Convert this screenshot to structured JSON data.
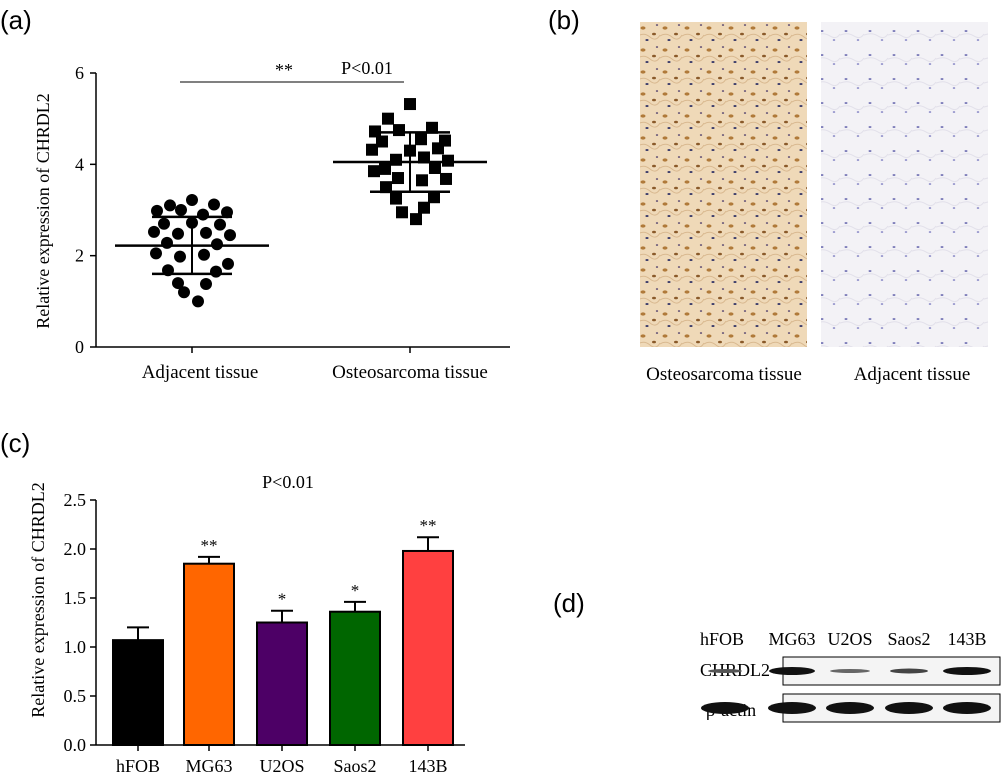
{
  "panels": {
    "a": {
      "label": "(a)"
    },
    "b": {
      "label": "(b)",
      "captions": [
        "Osteosarcoma tissue",
        "Adjacent tissue"
      ]
    },
    "c": {
      "label": "(c)"
    },
    "d": {
      "label": "(d)",
      "lanes": [
        "hFOB",
        "MG63",
        "U2OS",
        "Saos2",
        "143B"
      ],
      "rows": [
        "CHRDL2",
        "β-actin"
      ]
    }
  },
  "chart_data": [
    {
      "type": "scatter",
      "panel": "a",
      "ylabel": "Relative expression of CHRDL2",
      "ylim": [
        0,
        6
      ],
      "yticks": [
        "0",
        "2",
        "4",
        "6"
      ],
      "categories": [
        "Adjacent tissue",
        "Osteosarcoma tissue"
      ],
      "significance": {
        "stars": "**",
        "text": "P<0.01"
      },
      "series": [
        {
          "marker": "circle",
          "mean": 2.22,
          "sd_low": 1.6,
          "sd_high": 2.85,
          "values": [
            3.22,
            3.1,
            3.12,
            2.98,
            3.0,
            2.9,
            2.95,
            2.7,
            2.72,
            2.68,
            2.52,
            2.48,
            2.5,
            2.45,
            2.28,
            2.25,
            2.05,
            1.98,
            2.02,
            1.82,
            1.68,
            1.65,
            1.4,
            1.38,
            1.2,
            1.0
          ]
        },
        {
          "marker": "square",
          "mean": 4.05,
          "sd_low": 3.4,
          "sd_high": 4.7,
          "values": [
            5.32,
            5.0,
            4.8,
            4.72,
            4.75,
            4.55,
            4.52,
            4.5,
            4.3,
            4.35,
            4.32,
            4.1,
            4.15,
            4.08,
            3.9,
            3.92,
            3.85,
            3.7,
            3.65,
            3.68,
            3.5,
            3.28,
            3.25,
            3.05,
            2.95,
            2.8
          ]
        }
      ]
    },
    {
      "type": "bar",
      "panel": "c",
      "ylabel": "Relative expression of CHRDL2",
      "ylim": [
        0,
        2.5
      ],
      "yticks": [
        "0.0",
        "0.5",
        "1.0",
        "1.5",
        "2.0",
        "2.5"
      ],
      "annotation": "P<0.01",
      "categories": [
        "hFOB",
        "MG63",
        "U2OS",
        "Saos2",
        "143B"
      ],
      "values": [
        1.07,
        1.85,
        1.25,
        1.36,
        1.98
      ],
      "errors": [
        0.13,
        0.07,
        0.12,
        0.1,
        0.14
      ],
      "significance": [
        "",
        "**",
        "*",
        "*",
        "**"
      ],
      "colors": [
        "#000000",
        "#ff6600",
        "#4d0066",
        "#006600",
        "#ff4040"
      ]
    }
  ]
}
